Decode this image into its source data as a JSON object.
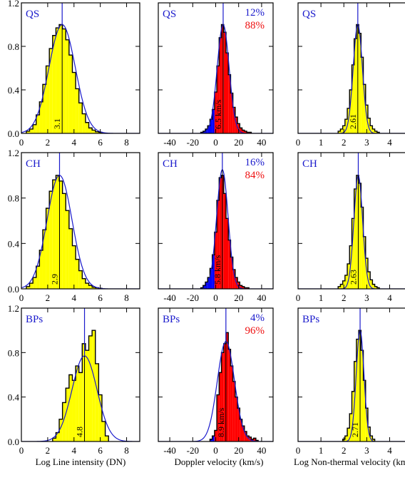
{
  "colors": {
    "frame": "#000000",
    "fit": "#1a1acc",
    "panel_label": "#1a1acc",
    "fill_yellow": "#ffff00",
    "fill_red": "#ff0000",
    "fill_blue": "#0000ff",
    "pct_blue": "#1a1acc",
    "pct_red": "#ee1111"
  },
  "columns": [
    {
      "xlabel": "Log Line intensity (DN)",
      "xlim": [
        0,
        9
      ],
      "xticks": [
        "0",
        "2",
        "4",
        "6",
        "8"
      ],
      "xtick_values": [
        0,
        2,
        4,
        6,
        8
      ]
    },
    {
      "xlabel": "Doppler velocity (km/s)",
      "xlim": [
        -50,
        50
      ],
      "xticks": [
        "-40",
        "-20",
        "0",
        "20",
        "40"
      ],
      "xtick_values": [
        -40,
        -20,
        0,
        20,
        40
      ]
    },
    {
      "xlabel": "Log Non-thermal velocity (km/s)",
      "xlim": [
        0,
        5.2
      ],
      "xticks": [
        "0",
        "1",
        "2",
        "3",
        "4"
      ],
      "xtick_values": [
        0,
        1,
        2,
        3,
        4
      ]
    }
  ],
  "yticks": [
    "0.0",
    "0.4",
    "0.8",
    "1.2"
  ],
  "ytick_values": [
    0,
    0.4,
    0.8,
    1.2
  ],
  "ylim": [
    0,
    1.2
  ],
  "chart_data": [
    {
      "type": "bar",
      "panel": "QS intensity",
      "label": "QS",
      "binwidth": 0.25,
      "fill": "yellow",
      "x": [
        0.5,
        0.75,
        1.0,
        1.25,
        1.5,
        1.75,
        2.0,
        2.25,
        2.5,
        2.75,
        3.0,
        3.25,
        3.5,
        3.75,
        4.0,
        4.25,
        4.5,
        4.75,
        5.0,
        5.25,
        5.5,
        5.75,
        6.0
      ],
      "values": [
        0.02,
        0.04,
        0.08,
        0.17,
        0.29,
        0.45,
        0.62,
        0.78,
        0.9,
        0.97,
        1.0,
        0.96,
        0.86,
        0.72,
        0.56,
        0.41,
        0.28,
        0.18,
        0.1,
        0.05,
        0.03,
        0.015,
        0.01
      ],
      "fit": {
        "center": 3.1,
        "sigma": 1.0,
        "amp": 1.0
      },
      "marker": 3.1,
      "marker_label": "3.1"
    },
    {
      "type": "bar",
      "panel": "QS Doppler",
      "label": "QS",
      "binwidth": 2,
      "fill_split": 0,
      "x": [
        -12,
        -10,
        -8,
        -6,
        -4,
        -2,
        0,
        2,
        4,
        6,
        8,
        10,
        12,
        14,
        16,
        18,
        20,
        22,
        24,
        26,
        28,
        30
      ],
      "values": [
        0.01,
        0.02,
        0.04,
        0.07,
        0.13,
        0.22,
        0.38,
        0.62,
        0.88,
        1.0,
        0.93,
        0.74,
        0.54,
        0.37,
        0.24,
        0.15,
        0.09,
        0.05,
        0.03,
        0.02,
        0.01,
        0.01
      ],
      "fit": {
        "center": 6.5,
        "sigma": 5.2,
        "amp": 1.0
      },
      "marker": 6.5,
      "marker_label": "6.5 km/s",
      "blue_pct": "12%",
      "red_pct": "88%"
    },
    {
      "type": "bar",
      "panel": "QS non-thermal",
      "label": "QS",
      "binwidth": 0.1,
      "fill": "yellow",
      "x": [
        1.8,
        1.9,
        2.0,
        2.1,
        2.2,
        2.3,
        2.4,
        2.5,
        2.6,
        2.7,
        2.8,
        2.9,
        3.0,
        3.1,
        3.2,
        3.3,
        3.4,
        3.5
      ],
      "values": [
        0.02,
        0.04,
        0.07,
        0.13,
        0.23,
        0.4,
        0.63,
        0.87,
        1.0,
        0.92,
        0.7,
        0.45,
        0.26,
        0.14,
        0.07,
        0.04,
        0.02,
        0.01
      ],
      "fit": {
        "center": 2.61,
        "sigma": 0.2,
        "amp": 1.0
      },
      "marker": 2.61,
      "marker_label": "2.61"
    },
    {
      "type": "bar",
      "panel": "CH intensity",
      "label": "CH",
      "binwidth": 0.25,
      "fill": "yellow",
      "x": [
        0.5,
        0.75,
        1.0,
        1.25,
        1.5,
        1.75,
        2.0,
        2.25,
        2.5,
        2.75,
        3.0,
        3.25,
        3.5,
        3.75,
        4.0,
        4.25,
        4.5,
        4.75,
        5.0,
        5.25,
        5.5,
        5.75,
        6.0
      ],
      "values": [
        0.02,
        0.05,
        0.1,
        0.2,
        0.34,
        0.52,
        0.71,
        0.86,
        0.96,
        1.0,
        0.95,
        0.84,
        0.69,
        0.53,
        0.38,
        0.26,
        0.16,
        0.09,
        0.05,
        0.03,
        0.015,
        0.01,
        0.005
      ],
      "fit": {
        "center": 2.9,
        "sigma": 0.95,
        "amp": 1.0
      },
      "marker": 2.9,
      "marker_label": "2.9"
    },
    {
      "type": "bar",
      "panel": "CH Doppler",
      "label": "CH",
      "binwidth": 2,
      "fill_split": 0,
      "x": [
        -12,
        -10,
        -8,
        -6,
        -4,
        -2,
        0,
        2,
        4,
        6,
        8,
        10,
        12,
        14,
        16,
        18,
        20,
        22,
        24,
        26,
        28
      ],
      "values": [
        0.01,
        0.03,
        0.06,
        0.1,
        0.18,
        0.3,
        0.5,
        0.78,
        0.98,
        1.0,
        0.84,
        0.62,
        0.43,
        0.28,
        0.17,
        0.1,
        0.06,
        0.03,
        0.02,
        0.01,
        0.01
      ],
      "fit": {
        "center": 5.8,
        "sigma": 5.0,
        "amp": 1.05
      },
      "marker": 5.8,
      "marker_label": "5.8 km/s",
      "blue_pct": "16%",
      "red_pct": "84%"
    },
    {
      "type": "bar",
      "panel": "CH non-thermal",
      "label": "CH",
      "binwidth": 0.1,
      "fill": "yellow",
      "x": [
        1.8,
        1.9,
        2.0,
        2.1,
        2.2,
        2.3,
        2.4,
        2.5,
        2.6,
        2.7,
        2.8,
        2.9,
        3.0,
        3.1,
        3.2,
        3.3,
        3.4,
        3.5
      ],
      "values": [
        0.02,
        0.04,
        0.07,
        0.12,
        0.22,
        0.38,
        0.62,
        0.88,
        1.0,
        0.93,
        0.72,
        0.46,
        0.27,
        0.15,
        0.08,
        0.04,
        0.02,
        0.01
      ],
      "fit": {
        "center": 2.63,
        "sigma": 0.19,
        "amp": 1.0
      },
      "marker": 2.63,
      "marker_label": "2.63"
    },
    {
      "type": "bar",
      "panel": "BPs intensity",
      "label": "BPs",
      "binwidth": 0.25,
      "fill": "yellow",
      "x": [
        2.5,
        2.75,
        3.0,
        3.25,
        3.5,
        3.75,
        4.0,
        4.25,
        4.5,
        4.75,
        5.0,
        5.25,
        5.5,
        5.75,
        6.0,
        6.25,
        6.5
      ],
      "values": [
        0.03,
        0.08,
        0.2,
        0.35,
        0.48,
        0.6,
        0.55,
        0.68,
        0.62,
        0.88,
        0.82,
        0.95,
        1.0,
        0.7,
        0.42,
        0.18,
        0.05
      ],
      "fit": {
        "center": 4.8,
        "sigma": 0.95,
        "amp": 0.77
      },
      "marker": 4.8,
      "marker_label": "4.8"
    },
    {
      "type": "bar",
      "panel": "BPs Doppler",
      "label": "BPs",
      "binwidth": 2,
      "fill_split": 0,
      "x": [
        -4,
        -2,
        0,
        2,
        4,
        6,
        8,
        10,
        12,
        14,
        16,
        18,
        20,
        22,
        24,
        26,
        28,
        30,
        32,
        34,
        36
      ],
      "values": [
        0.02,
        0.05,
        0.1,
        0.42,
        0.62,
        0.8,
        0.88,
        0.98,
        0.83,
        0.68,
        0.54,
        0.4,
        0.3,
        0.2,
        0.14,
        0.09,
        0.05,
        0.04,
        0.02,
        0.03,
        0.01
      ],
      "fit": {
        "center": 8.9,
        "sigma": 7.5,
        "amp": 0.9
      },
      "marker": 8.9,
      "marker_label": "8.9 km/s",
      "blue_pct": "4%",
      "red_pct": "96%"
    },
    {
      "type": "bar",
      "panel": "BPs non-thermal",
      "label": "BPs",
      "binwidth": 0.1,
      "fill": "yellow",
      "x": [
        2.0,
        2.1,
        2.2,
        2.3,
        2.4,
        2.5,
        2.6,
        2.7,
        2.8,
        2.9,
        3.0,
        3.1,
        3.2,
        3.3
      ],
      "values": [
        0.02,
        0.05,
        0.12,
        0.25,
        0.45,
        0.72,
        0.92,
        1.0,
        0.82,
        0.55,
        0.3,
        0.13,
        0.05,
        0.02
      ],
      "fit": {
        "center": 2.71,
        "sigma": 0.17,
        "amp": 1.0
      },
      "marker": 2.71,
      "marker_label": "2.71"
    }
  ]
}
